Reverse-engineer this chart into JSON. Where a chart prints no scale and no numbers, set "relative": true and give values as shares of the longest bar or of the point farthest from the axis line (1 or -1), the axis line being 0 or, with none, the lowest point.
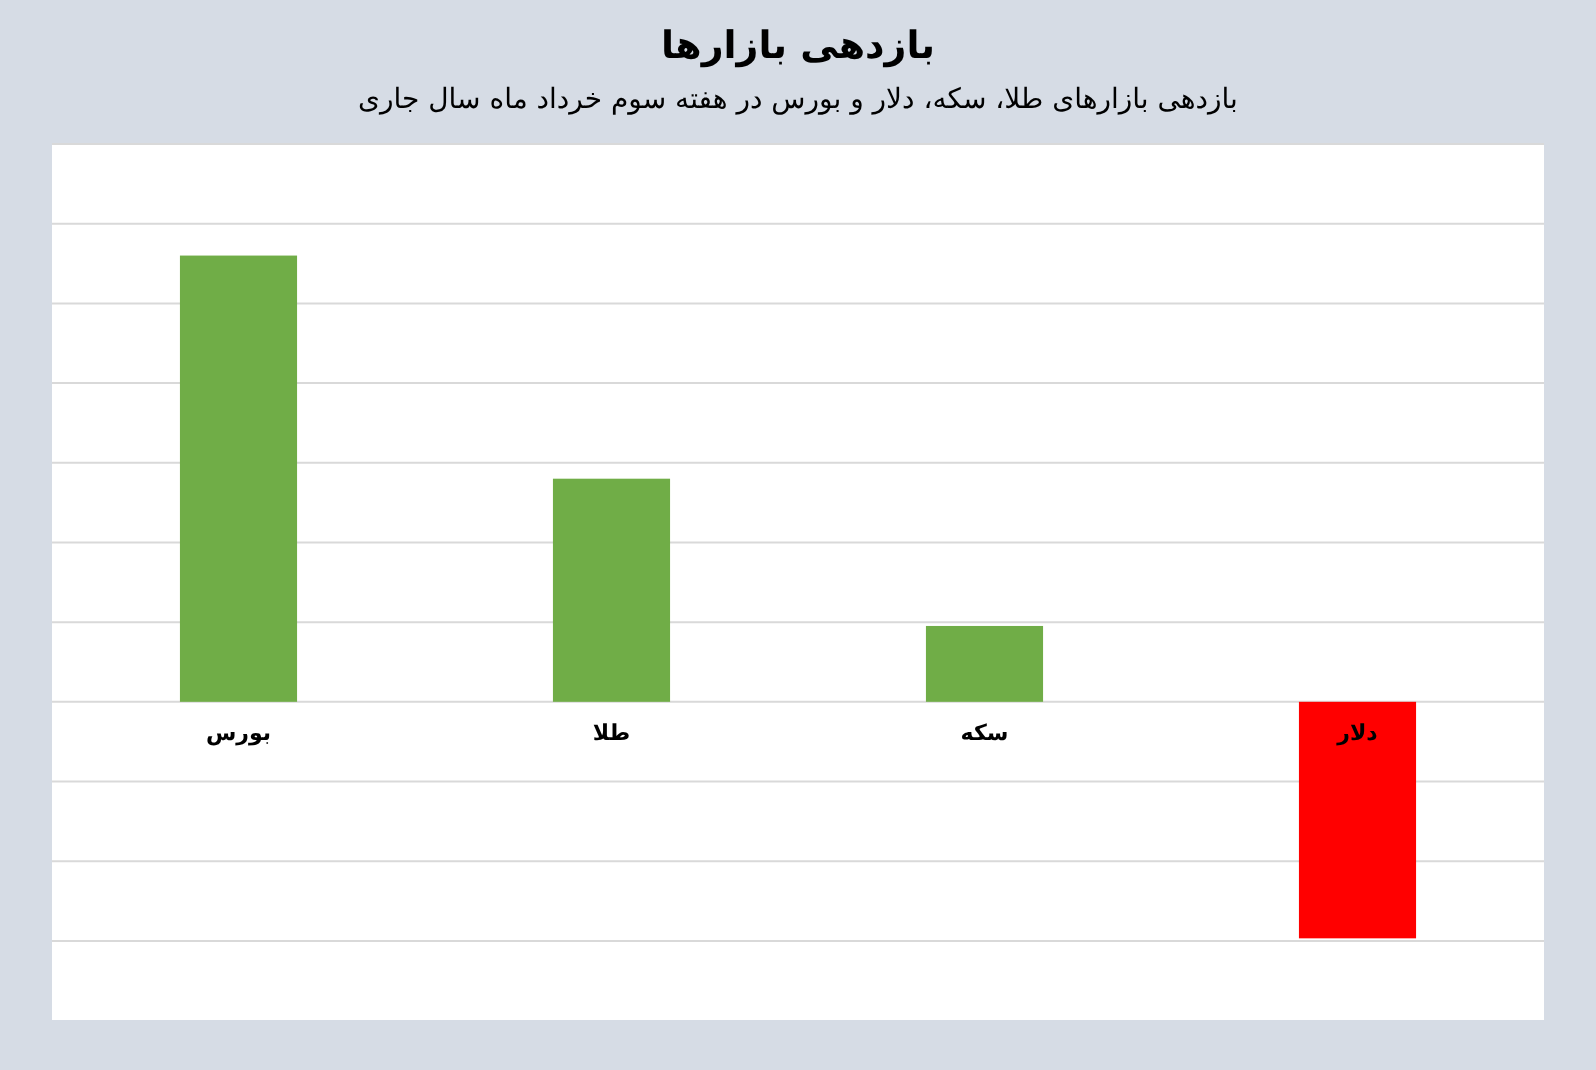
{
  "chart_data": {
    "type": "bar",
    "title": "بازدهی بازارها",
    "subtitle": "بازدهی بازارهای طلا، سکه، دلار و بورس در هفته سوم خرداد ماه سال جاری",
    "categories": [
      "بورس",
      "طلا",
      "سکه",
      "دلار"
    ],
    "values": [
      1,
      0.5,
      0.17,
      -0.53
    ],
    "colors": [
      "#70ad47",
      "#70ad47",
      "#70ad47",
      "#ff0000"
    ],
    "relative": true,
    "grid": "y"
  }
}
